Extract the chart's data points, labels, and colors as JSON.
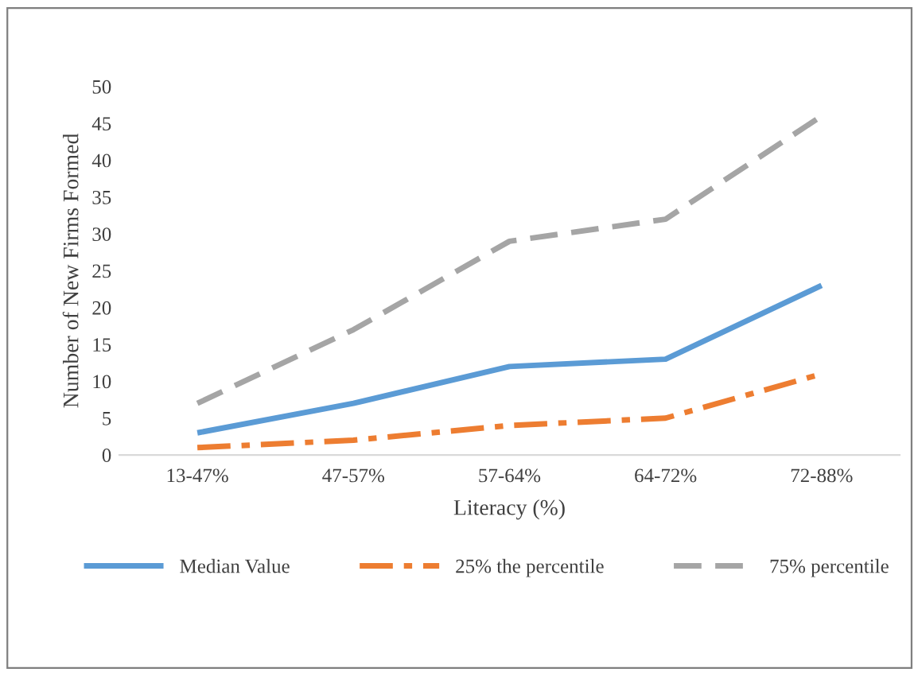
{
  "chart_data": {
    "type": "line",
    "xlabel": "Literacy (%)",
    "ylabel": "Number of New Firms Formed",
    "categories": [
      "13-47%",
      "47-57%",
      "57-64%",
      "64-72%",
      "72-88%"
    ],
    "series": [
      {
        "name": "Median Value",
        "color": "#5b9bd5",
        "line_style": "solid",
        "values": [
          3,
          7,
          12,
          13,
          23
        ]
      },
      {
        "name": "25% the percentile",
        "color": "#ed7d31",
        "line_style": "dashdot",
        "values": [
          1,
          2,
          4,
          5,
          11
        ]
      },
      {
        "name": "75% percentile",
        "color": "#a5a5a5",
        "line_style": "dashed",
        "values": [
          7,
          17,
          29,
          32,
          46
        ]
      }
    ],
    "ylim": [
      0,
      50
    ],
    "yticks": [
      0,
      5,
      10,
      15,
      20,
      25,
      30,
      35,
      40,
      45,
      50
    ],
    "grid": false,
    "legend": "bottom",
    "marker": "none"
  }
}
